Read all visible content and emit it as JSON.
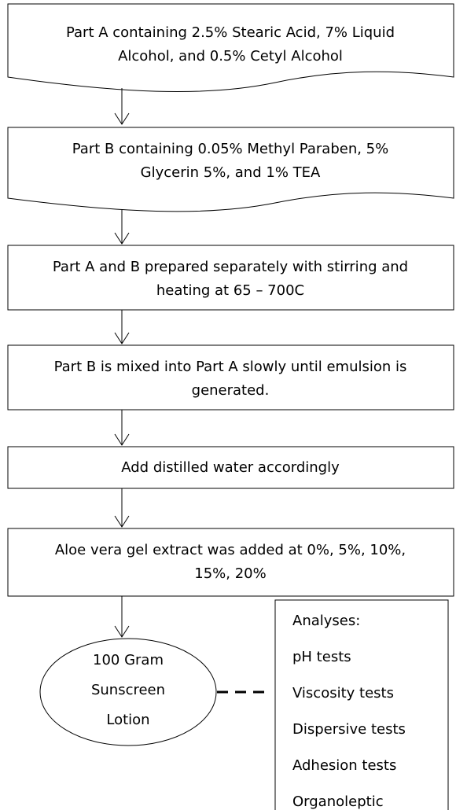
{
  "steps": [
    [
      "Part A containing 2.5% Stearic Acid, 7% Liquid",
      "Alcohol, and 0.5% Cetyl Alcohol"
    ],
    [
      "Part B containing 0.05% Methyl Paraben, 5%",
      "Glycerin 5%, and 1% TEA"
    ],
    [
      "Part A and B prepared separately with stirring and",
      "heating at 65 – 700C"
    ],
    [
      "Part B is mixed into Part A slowly until emulsion is",
      "generated."
    ],
    [
      "Add distilled water accordingly"
    ],
    [
      "Aloe vera gel extract was added at 0%, 5%, 10%,",
      "15%, 20%"
    ]
  ],
  "result": [
    "100 Gram",
    "Sunscreen",
    "Lotion"
  ],
  "analyses": {
    "title": "Analyses:",
    "items": [
      "pH tests",
      "Viscosity tests",
      "Dispersive tests",
      "Adhesion tests",
      "Organoleptic"
    ]
  }
}
